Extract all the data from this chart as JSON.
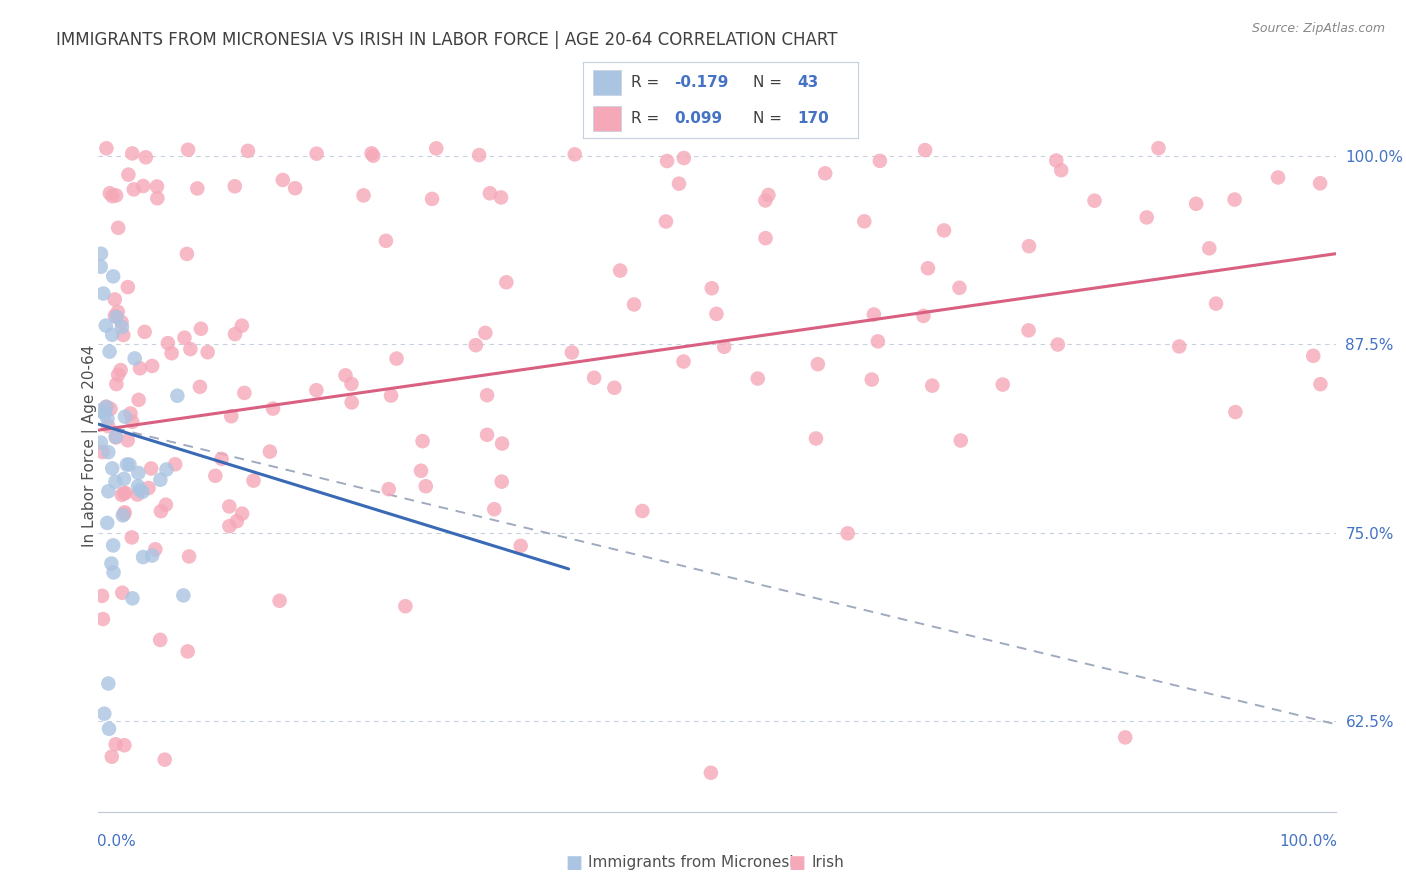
{
  "title": "IMMIGRANTS FROM MICRONESIA VS IRISH IN LABOR FORCE | AGE 20-64 CORRELATION CHART",
  "source": "Source: ZipAtlas.com",
  "ylabel": "In Labor Force | Age 20-64",
  "ylabel_right_labels": [
    "62.5%",
    "75.0%",
    "87.5%",
    "100.0%"
  ],
  "ylabel_right_values": [
    0.625,
    0.75,
    0.875,
    1.0
  ],
  "color_micronesia_fill": "#aac4e2",
  "color_irish_fill": "#f5a8b8",
  "color_micronesia_line": "#3a6ab5",
  "color_irish_line": "#d96080",
  "color_dashed": "#a0aabf",
  "color_axis_blue": "#4472c4",
  "color_title": "#404040",
  "color_source": "#888888",
  "color_grid": "#c8d0de",
  "xlim": [
    0.0,
    1.0
  ],
  "ylim": [
    0.565,
    1.05
  ],
  "micro_line_x": [
    0.0,
    0.38
  ],
  "micro_line_y": [
    0.822,
    0.726
  ],
  "irish_line_x": [
    0.0,
    1.0
  ],
  "irish_line_y": [
    0.818,
    0.935
  ],
  "dashed_line_x": [
    0.0,
    1.0
  ],
  "dashed_line_y": [
    0.822,
    0.623
  ]
}
